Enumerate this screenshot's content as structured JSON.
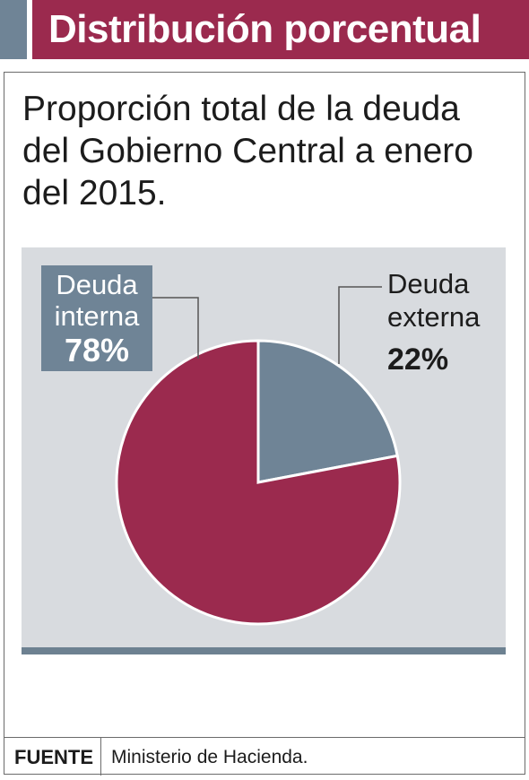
{
  "header": {
    "title": "Distribución porcentual"
  },
  "subtitle": [
    "Proporción total de la deuda",
    "del Gobierno Central a enero",
    "del 2015."
  ],
  "chart_data": {
    "type": "pie",
    "slices": [
      {
        "name_lines": [
          "Deuda",
          "externa"
        ],
        "value": 22,
        "label": "22%",
        "color": "#6f8496"
      },
      {
        "name_lines": [
          "Deuda",
          "interna"
        ],
        "value": 78,
        "label": "78%",
        "color": "#9b2a4e"
      }
    ],
    "start_angle_deg": 0,
    "direction": "clockwise"
  },
  "source": {
    "label": "FUENTE",
    "text": "Ministerio de Hacienda."
  },
  "colors": {
    "header": "#9b2a4e",
    "accent": "#6f8496",
    "chart_background": "#d8dbdf"
  }
}
